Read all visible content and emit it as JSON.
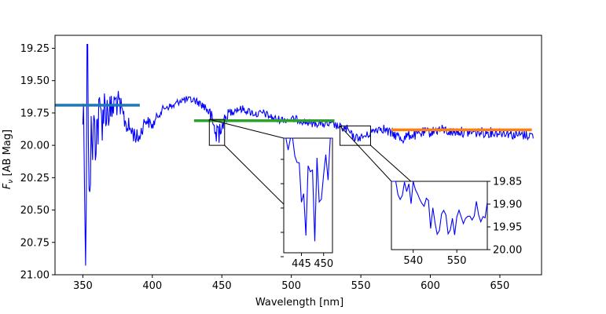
{
  "chart_data": {
    "type": "line",
    "xlabel": "Wavelength [nm]",
    "ylabel": "F_ν [AB Mag]",
    "ylabel_main": "F",
    "ylabel_sub": "ν",
    "ylabel_rest": " [AB Mag]",
    "xlim": [
      330,
      680
    ],
    "ylim": [
      21.0,
      19.15
    ],
    "y_inverted": true,
    "x_ticks": [
      "350",
      "400",
      "450",
      "500",
      "550",
      "600",
      "650"
    ],
    "y_ticks": [
      "19.25",
      "19.50",
      "19.75",
      "20.00",
      "20.25",
      "20.50",
      "20.75",
      "21.00"
    ],
    "grid": false,
    "colors": {
      "spectrum": "#0000ff",
      "band1": "#1f77b4",
      "band2": "#2ca02c",
      "band3": "#ff7f0e"
    },
    "spectrum_anchors": {
      "x": [
        350,
        352,
        355,
        358,
        362,
        366,
        370,
        374,
        378,
        382,
        386,
        390,
        395,
        400,
        405,
        410,
        415,
        420,
        425,
        430,
        435,
        440,
        445,
        450,
        455,
        460,
        465,
        470,
        475,
        480,
        485,
        490,
        495,
        500,
        505,
        510,
        515,
        520,
        525,
        530,
        535,
        540,
        545,
        550,
        555,
        560,
        565,
        570,
        575,
        580,
        585,
        590,
        595,
        600,
        605,
        610,
        615,
        620,
        625,
        630,
        635,
        640,
        645,
        650,
        655,
        660,
        665,
        670,
        674
      ],
      "y": [
        19.7,
        20.3,
        20.1,
        19.9,
        19.8,
        19.7,
        19.75,
        19.65,
        19.75,
        19.85,
        19.9,
        19.95,
        19.8,
        19.85,
        19.75,
        19.7,
        19.7,
        19.65,
        19.65,
        19.65,
        19.68,
        19.72,
        19.88,
        19.85,
        19.75,
        19.72,
        19.72,
        19.74,
        19.76,
        19.75,
        19.78,
        19.8,
        19.8,
        19.8,
        19.8,
        19.82,
        19.83,
        19.83,
        19.84,
        19.84,
        19.86,
        19.88,
        19.94,
        19.94,
        19.92,
        19.88,
        19.86,
        19.9,
        19.92,
        19.95,
        19.92,
        19.92,
        19.9,
        19.9,
        19.88,
        19.88,
        19.9,
        19.89,
        19.9,
        19.9,
        19.9,
        19.9,
        19.9,
        19.9,
        19.9,
        19.92,
        19.92,
        19.92,
        19.92
      ],
      "noise": [
        0.45,
        0.4,
        0.35,
        0.3,
        0.25,
        0.2,
        0.15,
        0.12,
        0.1,
        0.08,
        0.07,
        0.06,
        0.05,
        0.04,
        0.035,
        0.03,
        0.03,
        0.03,
        0.03,
        0.03,
        0.03,
        0.06,
        0.08,
        0.06,
        0.04,
        0.03,
        0.03,
        0.03,
        0.03,
        0.03,
        0.03,
        0.03,
        0.03,
        0.03,
        0.03,
        0.03,
        0.03,
        0.03,
        0.03,
        0.03,
        0.03,
        0.04,
        0.03,
        0.03,
        0.03,
        0.03,
        0.04,
        0.04,
        0.04,
        0.04,
        0.04,
        0.04,
        0.04,
        0.04,
        0.04,
        0.04,
        0.04,
        0.04,
        0.04,
        0.04,
        0.04,
        0.04,
        0.04,
        0.04,
        0.04,
        0.04,
        0.04,
        0.04,
        0.04
      ]
    },
    "bands": [
      {
        "x": [
          330,
          391
        ],
        "y": 19.69,
        "color": "#1f77b4"
      },
      {
        "x": [
          430,
          531
        ],
        "y": 19.81,
        "color": "#2ca02c"
      },
      {
        "x": [
          572,
          673
        ],
        "y": 19.88,
        "color": "#ff7f0e"
      }
    ],
    "insets": [
      {
        "region_x": [
          441,
          452
        ],
        "region_y": [
          19.8,
          20.0
        ],
        "xlim": [
          441,
          452
        ],
        "ylim": [
          19.8,
          20.0
        ],
        "x_ticks": [
          "445",
          "450"
        ],
        "y_ticks": [],
        "y_ticks_right": false
      },
      {
        "region_x": [
          535,
          557
        ],
        "region_y": [
          19.85,
          20.0
        ],
        "xlim": [
          535,
          557
        ],
        "ylim": [
          19.85,
          20.0
        ],
        "x_ticks": [
          "540",
          "550"
        ],
        "y_ticks": [
          "19.85",
          "19.90",
          "19.95",
          "20.00"
        ],
        "y_ticks_right": true
      }
    ]
  }
}
